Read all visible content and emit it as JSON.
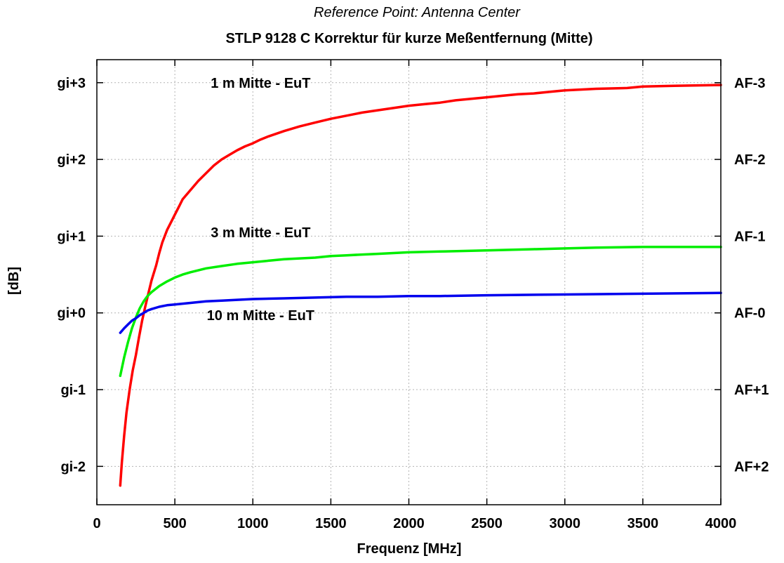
{
  "chart_data": {
    "type": "line",
    "subtitle": "Reference Point: Antenna Center",
    "title": "STLP 9128 C Korrektur für kurze Meßentfernung (Mitte)",
    "xlabel": "Frequenz [MHz]",
    "ylabel": "[dB]",
    "xlim": [
      0,
      4000
    ],
    "ylim": [
      -2.5,
      3.3
    ],
    "grid": true,
    "x_ticks": [
      0,
      500,
      1000,
      1500,
      2000,
      2500,
      3000,
      3500,
      4000
    ],
    "x_tick_labels": [
      "0",
      "500",
      "1000",
      "1500",
      "2000",
      "2500",
      "3000",
      "3500",
      "4000"
    ],
    "y_ticks": [
      3,
      2,
      1,
      0,
      -1,
      -2
    ],
    "y_tick_labels_left": [
      "gi+3",
      "gi+2",
      "gi+1",
      "gi+0",
      "gi-1",
      "gi-2"
    ],
    "y_tick_labels_right": [
      "AF-3",
      "AF-2",
      "AF-1",
      "AF-0",
      "AF+1",
      "AF+2"
    ],
    "annotations": [
      {
        "text": "1 m Mitte - EuT",
        "x": 1050,
        "y": 3.0
      },
      {
        "text": "3 m Mitte - EuT",
        "x": 1050,
        "y": 1.05
      },
      {
        "text": "10 m Mitte - EuT",
        "x": 1050,
        "y": -0.03
      }
    ],
    "series": [
      {
        "color": "#ff0000",
        "x": [
          150,
          160,
          175,
          190,
          210,
          230,
          250,
          270,
          290,
          310,
          330,
          350,
          380,
          400,
          420,
          450,
          480,
          500,
          530,
          550,
          600,
          650,
          700,
          750,
          800,
          850,
          900,
          950,
          1000,
          1050,
          1100,
          1200,
          1300,
          1400,
          1500,
          1600,
          1700,
          1800,
          1900,
          2000,
          2100,
          2200,
          2300,
          2400,
          2500,
          2600,
          2700,
          2800,
          2900,
          3000,
          3200,
          3400,
          3500,
          3700,
          4000
        ],
        "y": [
          -2.25,
          -1.95,
          -1.6,
          -1.3,
          -1.0,
          -0.75,
          -0.55,
          -0.32,
          -0.1,
          0.08,
          0.25,
          0.42,
          0.62,
          0.78,
          0.92,
          1.08,
          1.2,
          1.28,
          1.4,
          1.48,
          1.6,
          1.72,
          1.82,
          1.92,
          2.0,
          2.06,
          2.12,
          2.17,
          2.21,
          2.26,
          2.3,
          2.37,
          2.43,
          2.48,
          2.53,
          2.57,
          2.61,
          2.64,
          2.67,
          2.7,
          2.72,
          2.74,
          2.77,
          2.79,
          2.81,
          2.83,
          2.85,
          2.86,
          2.88,
          2.9,
          2.92,
          2.93,
          2.95,
          2.96,
          2.97
        ]
      },
      {
        "color": "#00ee00",
        "x": [
          150,
          175,
          200,
          225,
          250,
          275,
          300,
          325,
          350,
          400,
          450,
          500,
          550,
          600,
          700,
          800,
          900,
          1000,
          1100,
          1200,
          1300,
          1400,
          1500,
          1600,
          1700,
          1800,
          1900,
          2000,
          2200,
          2400,
          2600,
          2800,
          3000,
          3200,
          3500,
          3700,
          4000
        ],
        "y": [
          -0.82,
          -0.58,
          -0.38,
          -0.2,
          -0.06,
          0.06,
          0.15,
          0.22,
          0.27,
          0.35,
          0.41,
          0.46,
          0.5,
          0.53,
          0.58,
          0.61,
          0.64,
          0.66,
          0.68,
          0.7,
          0.71,
          0.72,
          0.74,
          0.75,
          0.76,
          0.77,
          0.78,
          0.79,
          0.8,
          0.81,
          0.82,
          0.83,
          0.84,
          0.85,
          0.86,
          0.86,
          0.86
        ]
      },
      {
        "color": "#0000ee",
        "x": [
          150,
          175,
          200,
          225,
          250,
          275,
          300,
          325,
          350,
          400,
          450,
          500,
          600,
          700,
          800,
          900,
          1000,
          1200,
          1400,
          1600,
          1800,
          2000,
          2200,
          2500,
          3000,
          3500,
          4000
        ],
        "y": [
          -0.26,
          -0.2,
          -0.15,
          -0.1,
          -0.07,
          -0.03,
          0.0,
          0.03,
          0.05,
          0.08,
          0.1,
          0.11,
          0.13,
          0.15,
          0.16,
          0.17,
          0.18,
          0.19,
          0.2,
          0.21,
          0.21,
          0.22,
          0.22,
          0.23,
          0.24,
          0.25,
          0.26
        ]
      }
    ]
  }
}
